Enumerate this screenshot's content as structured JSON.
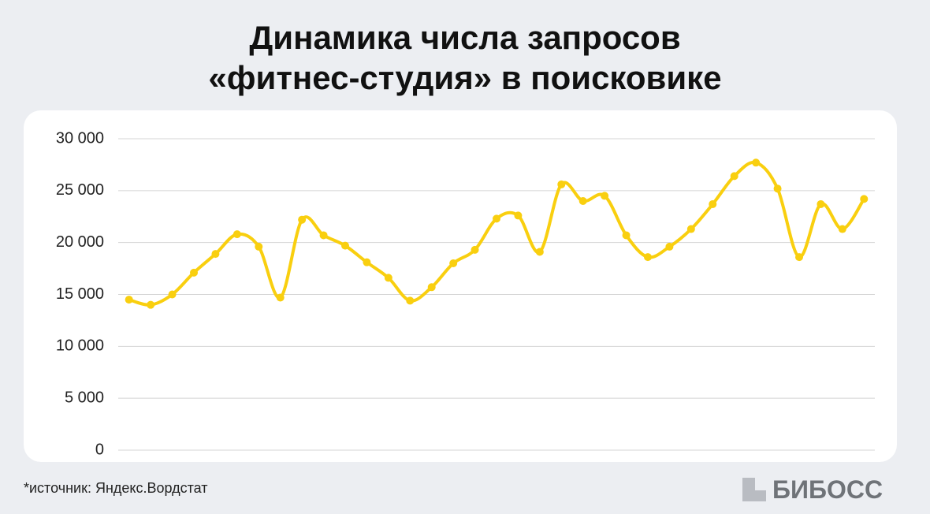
{
  "chart_data": {
    "type": "line",
    "title": [
      "Динамика числа запросов",
      "«фитнес-студия» в поисковике"
    ],
    "categories": [
      null,
      null,
      null,
      null,
      null,
      null,
      null,
      null,
      null,
      null,
      null,
      null,
      null,
      null,
      null,
      null,
      null,
      null,
      null,
      null,
      null,
      null,
      null,
      null,
      null,
      null,
      null,
      null,
      null,
      null,
      null,
      null,
      null,
      null,
      null
    ],
    "values": [
      14500,
      14000,
      15000,
      17100,
      18900,
      20800,
      19600,
      14700,
      22200,
      20700,
      19700,
      18100,
      16600,
      14400,
      15700,
      18000,
      19300,
      22300,
      22600,
      19100,
      25600,
      24000,
      24500,
      20700,
      18600,
      19600,
      21300,
      23700,
      26400,
      27700,
      25200,
      18600,
      23700,
      21300,
      24200
    ],
    "color": "#f9cf0f",
    "ylim": [
      0,
      30000
    ],
    "yticks": [
      0,
      {
        "value": 5000,
        "label": "5 000"
      },
      {
        "value": 10000,
        "label": "10 000"
      },
      {
        "value": 15000,
        "label": "15 000"
      },
      {
        "value": 20000,
        "label": "20 000"
      },
      {
        "value": 25000,
        "label": "25 000"
      },
      {
        "value": 30000,
        "label": "30 000"
      }
    ],
    "grid": true,
    "smooth": true,
    "source": "*источник: Яндекс.Вордстат",
    "logo": "БИБОСС"
  }
}
